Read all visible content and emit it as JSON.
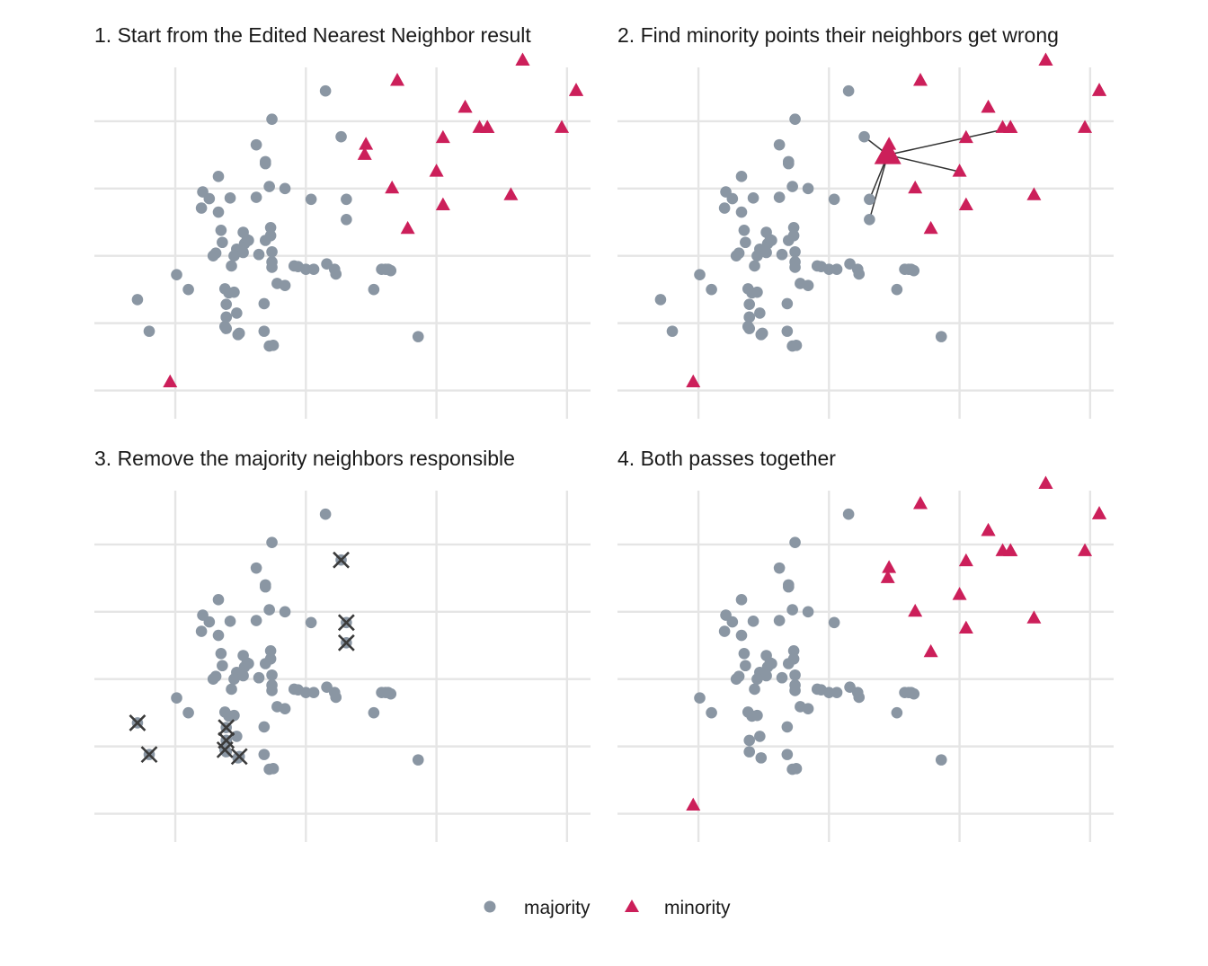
{
  "colors": {
    "majority": "#8a96a3",
    "minority": "#cc1f5a",
    "removed_marker": "#3a3a3a",
    "link_line": "#333333",
    "grid": "#e5e5e5"
  },
  "legend": {
    "majority_label": "majority",
    "minority_label": "minority",
    "position": "bottom"
  },
  "chart_data": [
    {
      "type": "scatter",
      "title": "1. Start from the Edited Nearest Neighbor result",
      "xlabel": "",
      "ylabel": "",
      "grid": true,
      "show_minority": true,
      "show_all_majority": true,
      "removed_majority_indices": [],
      "show_removed_markers": false,
      "show_neighbor_links": false,
      "highlight_minority_index": null
    },
    {
      "type": "scatter",
      "title": "2. Find minority points their neighbors get wrong",
      "xlabel": "",
      "ylabel": "",
      "grid": true,
      "show_minority": true,
      "show_all_majority": true,
      "removed_majority_indices": [],
      "show_removed_markers": false,
      "show_neighbor_links": true,
      "highlight_minority_index": 19,
      "neighbor_majority_indices": [
        3,
        10,
        11
      ],
      "neighbor_minority_indices": [
        5,
        9
      ]
    },
    {
      "type": "scatter",
      "title": "3. Remove the majority neighbors responsible",
      "xlabel": "",
      "ylabel": "",
      "grid": true,
      "show_minority": false,
      "show_all_majority": true,
      "removed_majority_indices": [
        3,
        10,
        11,
        65,
        66,
        67,
        68,
        69,
        70
      ],
      "show_removed_markers": true,
      "show_neighbor_links": false,
      "highlight_minority_index": null
    },
    {
      "type": "scatter",
      "title": "4. Both passes together",
      "xlabel": "",
      "ylabel": "",
      "grid": true,
      "show_minority": true,
      "show_all_majority": false,
      "removed_majority_indices": [
        3,
        10,
        11,
        65,
        66,
        67,
        68,
        69,
        70
      ],
      "show_removed_markers": false,
      "show_neighbor_links": false,
      "highlight_minority_index": null
    }
  ],
  "points": {
    "xlim": [
      -0.62,
      3.18
    ],
    "ylim": [
      -0.42,
      4.8
    ],
    "x_grid": [
      0,
      1,
      2,
      3
    ],
    "y_grid": [
      0,
      1,
      2,
      3,
      4
    ],
    "majority": [
      [
        1.15,
        4.45
      ],
      [
        0.74,
        4.03
      ],
      [
        0.62,
        3.65
      ],
      [
        1.27,
        3.77
      ],
      [
        0.69,
        3.4
      ],
      [
        0.69,
        3.37
      ],
      [
        0.33,
        3.18
      ],
      [
        0.72,
        3.03
      ],
      [
        0.84,
        3.0
      ],
      [
        1.04,
        2.84
      ],
      [
        1.31,
        2.84
      ],
      [
        1.31,
        2.54
      ],
      [
        0.62,
        2.87
      ],
      [
        0.42,
        2.86
      ],
      [
        0.26,
        2.85
      ],
      [
        0.2,
        2.71
      ],
      [
        0.33,
        2.65
      ],
      [
        0.21,
        2.95
      ],
      [
        0.35,
        2.38
      ],
      [
        0.73,
        2.42
      ],
      [
        0.52,
        2.35
      ],
      [
        0.73,
        2.3
      ],
      [
        0.36,
        2.2
      ],
      [
        0.53,
        2.18
      ],
      [
        0.55,
        2.24
      ],
      [
        0.56,
        2.23
      ],
      [
        0.69,
        2.23
      ],
      [
        0.31,
        2.04
      ],
      [
        0.47,
        2.1
      ],
      [
        0.52,
        2.05
      ],
      [
        0.74,
        2.06
      ],
      [
        0.64,
        2.02
      ],
      [
        0.45,
        2.0
      ],
      [
        0.29,
        2.0
      ],
      [
        0.43,
        1.85
      ],
      [
        0.74,
        1.91
      ],
      [
        0.74,
        1.83
      ],
      [
        0.91,
        1.85
      ],
      [
        0.94,
        1.84
      ],
      [
        1.0,
        1.8
      ],
      [
        1.06,
        1.8
      ],
      [
        1.16,
        1.88
      ],
      [
        1.22,
        1.8
      ],
      [
        1.63,
        1.8
      ],
      [
        1.65,
        1.78
      ],
      [
        1.23,
        1.73
      ],
      [
        0.01,
        1.72
      ],
      [
        0.84,
        1.56
      ],
      [
        0.1,
        1.5
      ],
      [
        0.45,
        1.46
      ],
      [
        0.41,
        1.45
      ],
      [
        0.38,
        1.51
      ],
      [
        0.78,
        1.59
      ],
      [
        0.68,
        1.29
      ],
      [
        0.47,
        1.15
      ],
      [
        0.39,
        1.09
      ],
      [
        0.68,
        0.88
      ],
      [
        0.39,
        0.92
      ],
      [
        0.48,
        0.83
      ],
      [
        0.72,
        0.66
      ],
      [
        0.75,
        0.67
      ],
      [
        1.86,
        0.8
      ],
      [
        1.58,
        1.8
      ],
      [
        1.61,
        1.8
      ],
      [
        1.52,
        1.5
      ],
      [
        -0.29,
        1.35
      ],
      [
        -0.2,
        0.88
      ],
      [
        0.39,
        1.09
      ],
      [
        0.39,
        1.28
      ],
      [
        0.49,
        0.85
      ],
      [
        0.38,
        0.95
      ]
    ],
    "minority": [
      [
        2.66,
        4.9
      ],
      [
        1.7,
        4.6
      ],
      [
        3.07,
        4.45
      ],
      [
        2.22,
        4.2
      ],
      [
        2.33,
        3.9
      ],
      [
        2.39,
        3.9
      ],
      [
        2.96,
        3.9
      ],
      [
        2.05,
        3.75
      ],
      [
        1.46,
        3.65
      ],
      [
        2.0,
        3.25
      ],
      [
        1.66,
        3.0
      ],
      [
        2.57,
        2.9
      ],
      [
        2.05,
        2.75
      ],
      [
        1.78,
        2.4
      ],
      [
        -0.04,
        0.12
      ],
      [
        2.22,
        4.2
      ],
      [
        2.39,
        3.9
      ],
      [
        3.07,
        4.45
      ],
      [
        2.66,
        4.9
      ],
      [
        1.45,
        3.5
      ]
    ]
  }
}
